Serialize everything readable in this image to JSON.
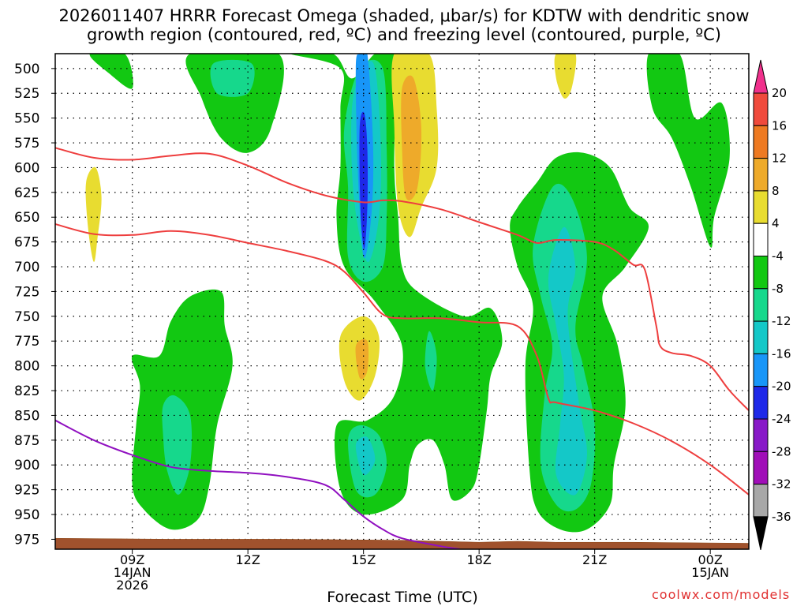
{
  "chart_data": {
    "type": "heatmap",
    "title_line1": "2026011407 HRRR Forecast Omega (shaded, μbar/s) for KDTW with dendritic snow",
    "title_line2": "growth region (contoured, red, ºC) and freezing level (contoured, purple, ºC)",
    "xlabel": "Forecast Time (UTC)",
    "x_ticks": [
      {
        "hour": 9,
        "line1": "09Z",
        "line2": "14JAN",
        "line3": "2026"
      },
      {
        "hour": 12,
        "line1": "12Z",
        "line2": "",
        "line3": ""
      },
      {
        "hour": 15,
        "line1": "15Z",
        "line2": "",
        "line3": ""
      },
      {
        "hour": 18,
        "line1": "18Z",
        "line2": "",
        "line3": ""
      },
      {
        "hour": 21,
        "line1": "21Z",
        "line2": "",
        "line3": ""
      },
      {
        "hour": 24,
        "line1": "00Z",
        "line2": "15JAN",
        "line3": ""
      }
    ],
    "xlim": [
      7,
      25
    ],
    "ylim": [
      485,
      985
    ],
    "y_ticks": [
      500,
      525,
      550,
      575,
      600,
      625,
      650,
      675,
      700,
      725,
      750,
      775,
      800,
      825,
      850,
      875,
      900,
      925,
      950,
      975
    ],
    "colorbar": {
      "labels": [
        "20",
        "16",
        "12",
        "8",
        "4",
        "-4",
        "-8",
        "-12",
        "-16",
        "-20",
        "-24",
        "-28",
        "-32",
        "-36"
      ],
      "colors": [
        "#f0308c",
        "#f04a3c",
        "#ee7a22",
        "#eeaa2a",
        "#e8dc30",
        "#ffffff",
        "#12c812",
        "#16d88c",
        "#14c8c8",
        "#1896f8",
        "#1e28e8",
        "#8818c8",
        "#a00eb8",
        "#a8a8a8",
        "#000000"
      ]
    },
    "omega_regions": [
      {
        "level": -4,
        "pts": [
          [
            7.9,
            485
          ],
          [
            8.8,
            485
          ],
          [
            9,
            520
          ],
          [
            8.4,
            505
          ]
        ]
      },
      {
        "level": -4,
        "pts": [
          [
            10.5,
            485
          ],
          [
            12.8,
            485
          ],
          [
            12.6,
            560
          ],
          [
            12,
            585
          ],
          [
            11.3,
            570
          ],
          [
            10.8,
            530
          ]
        ]
      },
      {
        "level": -8,
        "pts": [
          [
            11.1,
            495
          ],
          [
            12.1,
            495
          ],
          [
            12,
            525
          ],
          [
            11.2,
            525
          ]
        ]
      },
      {
        "level": -4,
        "pts": [
          [
            13.1,
            485
          ],
          [
            14.2,
            485
          ],
          [
            14.7,
            510
          ],
          [
            15.3,
            485
          ],
          [
            15.8,
            485
          ],
          [
            15.8,
            600
          ],
          [
            15.9,
            650
          ],
          [
            16,
            700
          ],
          [
            16.4,
            725
          ],
          [
            17.6,
            750
          ],
          [
            18.3,
            742
          ],
          [
            18.6,
            775
          ],
          [
            18.3,
            810
          ],
          [
            18.2,
            845
          ],
          [
            18,
            900
          ],
          [
            17.8,
            925
          ],
          [
            17.3,
            935
          ],
          [
            17.1,
            900
          ],
          [
            16.8,
            875
          ],
          [
            16.4,
            880
          ],
          [
            16.2,
            900
          ],
          [
            16,
            935
          ],
          [
            15,
            950
          ],
          [
            14.4,
            925
          ],
          [
            14.3,
            860
          ],
          [
            15.1,
            855
          ],
          [
            15.8,
            830
          ],
          [
            16,
            780
          ],
          [
            15.3,
            735
          ],
          [
            14.5,
            700
          ],
          [
            14.3,
            650
          ],
          [
            14.4,
            600
          ],
          [
            14.4,
            540
          ],
          [
            14.4,
            500
          ]
        ]
      },
      {
        "level": -8,
        "pts": [
          [
            14.5,
            560
          ],
          [
            14.6,
            620
          ],
          [
            14.6,
            690
          ],
          [
            15,
            715
          ],
          [
            15.5,
            700
          ],
          [
            15.6,
            650
          ],
          [
            15.6,
            580
          ],
          [
            15.5,
            500
          ],
          [
            14.9,
            500
          ]
        ]
      },
      {
        "level": -12,
        "pts": [
          [
            14.7,
            540
          ],
          [
            14.75,
            630
          ],
          [
            15.1,
            695
          ],
          [
            15.4,
            650
          ],
          [
            15.45,
            580
          ],
          [
            15.3,
            500
          ],
          [
            15,
            500
          ]
        ]
      },
      {
        "level": -16,
        "pts": [
          [
            14.8,
            500
          ],
          [
            14.85,
            600
          ],
          [
            15,
            690
          ],
          [
            15.2,
            650
          ],
          [
            15.25,
            580
          ],
          [
            15.1,
            485
          ],
          [
            14.9,
            485
          ]
        ]
      },
      {
        "level": -20,
        "pts": [
          [
            14.9,
            560
          ],
          [
            14.92,
            640
          ],
          [
            15.02,
            682
          ],
          [
            15.1,
            640
          ],
          [
            15.1,
            580
          ],
          [
            15.02,
            545
          ]
        ]
      },
      {
        "level": -8,
        "pts": [
          [
            16.7,
            765
          ],
          [
            16.9,
            790
          ],
          [
            16.8,
            825
          ],
          [
            16.6,
            800
          ]
        ]
      },
      {
        "level": -8,
        "pts": [
          [
            14.6,
            875
          ],
          [
            14.9,
            860
          ],
          [
            15.4,
            870
          ],
          [
            15.6,
            900
          ],
          [
            15.3,
            930
          ],
          [
            14.8,
            925
          ]
        ]
      },
      {
        "level": -12,
        "pts": [
          [
            14.8,
            880
          ],
          [
            15.1,
            872
          ],
          [
            15.3,
            895
          ],
          [
            15,
            910
          ]
        ]
      },
      {
        "level": -4,
        "pts": [
          [
            9,
            790
          ],
          [
            9.7,
            790
          ],
          [
            10,
            755
          ],
          [
            10.5,
            730
          ],
          [
            11.3,
            725
          ],
          [
            11.4,
            760
          ],
          [
            11.6,
            800
          ],
          [
            11.2,
            860
          ],
          [
            11,
            920
          ],
          [
            10.7,
            955
          ],
          [
            10,
            965
          ],
          [
            9.3,
            945
          ],
          [
            9,
            920
          ],
          [
            9.1,
            860
          ],
          [
            9.2,
            820
          ]
        ]
      },
      {
        "level": -8,
        "pts": [
          [
            9.8,
            840
          ],
          [
            10.1,
            830
          ],
          [
            10.5,
            850
          ],
          [
            10.5,
            900
          ],
          [
            10.2,
            930
          ],
          [
            9.9,
            905
          ],
          [
            9.8,
            870
          ]
        ]
      },
      {
        "level": -4,
        "pts": [
          [
            19,
            640
          ],
          [
            19.5,
            615
          ],
          [
            20,
            590
          ],
          [
            20.7,
            585
          ],
          [
            21.4,
            600
          ],
          [
            21.9,
            640
          ],
          [
            22.4,
            660
          ],
          [
            21.8,
            700
          ],
          [
            21.2,
            730
          ],
          [
            21.6,
            780
          ],
          [
            21.8,
            840
          ],
          [
            21.5,
            900
          ],
          [
            21.4,
            940
          ],
          [
            20.8,
            965
          ],
          [
            20.1,
            965
          ],
          [
            19.5,
            945
          ],
          [
            19.3,
            900
          ],
          [
            19.2,
            800
          ],
          [
            19.4,
            740
          ],
          [
            19,
            700
          ],
          [
            18.8,
            660
          ]
        ]
      },
      {
        "level": -8,
        "pts": [
          [
            19.4,
            680
          ],
          [
            19.9,
            620
          ],
          [
            20.4,
            630
          ],
          [
            20.8,
            690
          ],
          [
            20.5,
            760
          ],
          [
            20.7,
            800
          ],
          [
            21,
            860
          ],
          [
            20.9,
            920
          ],
          [
            20.5,
            945
          ],
          [
            20,
            940
          ],
          [
            19.6,
            900
          ],
          [
            19.7,
            830
          ],
          [
            19.9,
            780
          ],
          [
            19.6,
            730
          ]
        ]
      },
      {
        "level": -12,
        "pts": [
          [
            19.8,
            710
          ],
          [
            20.2,
            660
          ],
          [
            20.5,
            700
          ],
          [
            20.3,
            750
          ],
          [
            20.6,
            840
          ],
          [
            20.8,
            890
          ],
          [
            20.5,
            930
          ],
          [
            20,
            910
          ],
          [
            20.1,
            860
          ],
          [
            20.2,
            810
          ],
          [
            20,
            760
          ]
        ]
      },
      {
        "level": -4,
        "pts": [
          [
            22.4,
            485
          ],
          [
            23.2,
            485
          ],
          [
            23.6,
            550
          ],
          [
            24.3,
            535
          ],
          [
            24.5,
            590
          ],
          [
            24.1,
            650
          ],
          [
            24,
            680
          ],
          [
            23.5,
            620
          ],
          [
            23,
            570
          ],
          [
            22.5,
            540
          ]
        ]
      },
      {
        "level": 4,
        "pts": [
          [
            15.8,
            485
          ],
          [
            16.7,
            485
          ],
          [
            16.9,
            540
          ],
          [
            16.9,
            600
          ],
          [
            16.5,
            640
          ],
          [
            16.2,
            670
          ],
          [
            15.9,
            640
          ],
          [
            15.8,
            560
          ]
        ]
      },
      {
        "level": 8,
        "pts": [
          [
            16,
            520
          ],
          [
            16.3,
            510
          ],
          [
            16.5,
            560
          ],
          [
            16.4,
            620
          ],
          [
            16.1,
            630
          ],
          [
            16,
            580
          ]
        ]
      },
      {
        "level": 4,
        "pts": [
          [
            14.4,
            770
          ],
          [
            15,
            750
          ],
          [
            15.4,
            770
          ],
          [
            15.3,
            810
          ],
          [
            14.9,
            835
          ],
          [
            14.5,
            815
          ]
        ]
      },
      {
        "level": 8,
        "pts": [
          [
            14.8,
            780
          ],
          [
            15.1,
            775
          ],
          [
            15.1,
            805
          ],
          [
            14.9,
            812
          ]
        ]
      },
      {
        "level": 4,
        "pts": [
          [
            7.8,
            615
          ],
          [
            8.05,
            600
          ],
          [
            8.2,
            630
          ],
          [
            8.1,
            670
          ],
          [
            8,
            695
          ],
          [
            7.85,
            660
          ]
        ]
      },
      {
        "level": 4,
        "pts": [
          [
            20,
            485
          ],
          [
            20.5,
            485
          ],
          [
            20.4,
            520
          ],
          [
            20.2,
            530
          ],
          [
            20,
            510
          ]
        ]
      }
    ],
    "dgz_lines": [
      [
        [
          7,
          580
        ],
        [
          8,
          590
        ],
        [
          9,
          592
        ],
        [
          10,
          588
        ],
        [
          11,
          586
        ],
        [
          12,
          598
        ],
        [
          13,
          615
        ],
        [
          14,
          628
        ],
        [
          15,
          635
        ],
        [
          15.5,
          633
        ],
        [
          16,
          634
        ],
        [
          17,
          642
        ],
        [
          18,
          655
        ],
        [
          19,
          668
        ],
        [
          19.5,
          676
        ],
        [
          20,
          673
        ],
        [
          21,
          675
        ],
        [
          21.5,
          683
        ],
        [
          22,
          698
        ],
        [
          22.3,
          703
        ],
        [
          22.6,
          760
        ],
        [
          22.7,
          780
        ],
        [
          23,
          787
        ],
        [
          23.5,
          790
        ],
        [
          24,
          800
        ],
        [
          24.5,
          825
        ],
        [
          25,
          845
        ]
      ],
      [
        [
          7,
          657
        ],
        [
          8,
          667
        ],
        [
          9,
          668
        ],
        [
          10,
          664
        ],
        [
          11,
          668
        ],
        [
          12,
          676
        ],
        [
          13,
          684
        ],
        [
          14,
          694
        ],
        [
          14.5,
          705
        ],
        [
          15,
          726
        ],
        [
          15.5,
          748
        ],
        [
          16,
          752
        ],
        [
          17,
          752
        ],
        [
          18,
          756
        ],
        [
          19,
          760
        ],
        [
          19.5,
          790
        ],
        [
          19.8,
          833
        ],
        [
          20,
          837
        ],
        [
          21,
          845
        ],
        [
          22,
          858
        ],
        [
          23,
          876
        ],
        [
          24,
          900
        ],
        [
          25,
          930
        ]
      ]
    ],
    "freezing_line": [
      [
        7,
        855
      ],
      [
        8,
        875
      ],
      [
        9,
        890
      ],
      [
        10,
        902
      ],
      [
        11,
        906
      ],
      [
        12,
        908
      ],
      [
        13,
        912
      ],
      [
        14,
        920
      ],
      [
        14.5,
        935
      ],
      [
        15,
        952
      ],
      [
        15.5,
        965
      ],
      [
        16,
        974
      ],
      [
        17,
        982
      ],
      [
        17.5,
        985
      ]
    ],
    "ground": [
      [
        7,
        974
      ],
      [
        10,
        975
      ],
      [
        13,
        975
      ],
      [
        16,
        976
      ],
      [
        17,
        977
      ],
      [
        18,
        978
      ],
      [
        19,
        977
      ],
      [
        20,
        978
      ],
      [
        22,
        978
      ],
      [
        25,
        979
      ]
    ]
  },
  "credit": "coolwx.com/models"
}
